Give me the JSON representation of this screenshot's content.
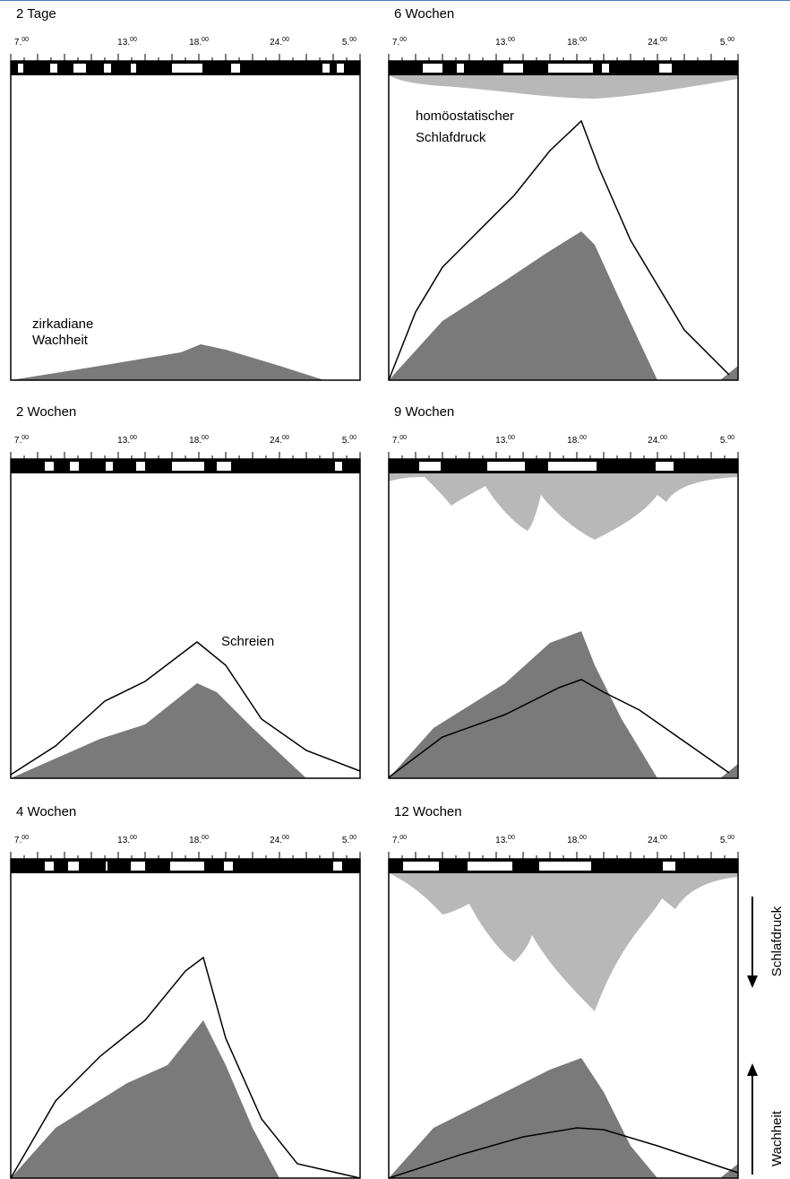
{
  "panels": [
    {
      "title": "2 Tage"
    },
    {
      "title": "6 Wochen"
    },
    {
      "title": "2 Wochen"
    },
    {
      "title": "9 Wochen"
    },
    {
      "title": "4 Wochen"
    },
    {
      "title": "12 Wochen"
    }
  ],
  "time_labels": [
    {
      "hour": "7.",
      "minutes": "00"
    },
    {
      "hour": "13.",
      "minutes": "00"
    },
    {
      "hour": "18.",
      "minutes": "00"
    },
    {
      "hour": "24.",
      "minutes": "00"
    },
    {
      "hour": "5.",
      "minutes": "00"
    }
  ],
  "annotations": {
    "circadian": [
      "zirkadiane",
      "Wachheit"
    ],
    "homeostatic": [
      "homöostatischer",
      "Schlafdruck"
    ],
    "crying": "Schreien"
  },
  "side_labels": {
    "sleep_pressure": "Schlafdruck",
    "wakefulness": "Wachheit"
  }
}
